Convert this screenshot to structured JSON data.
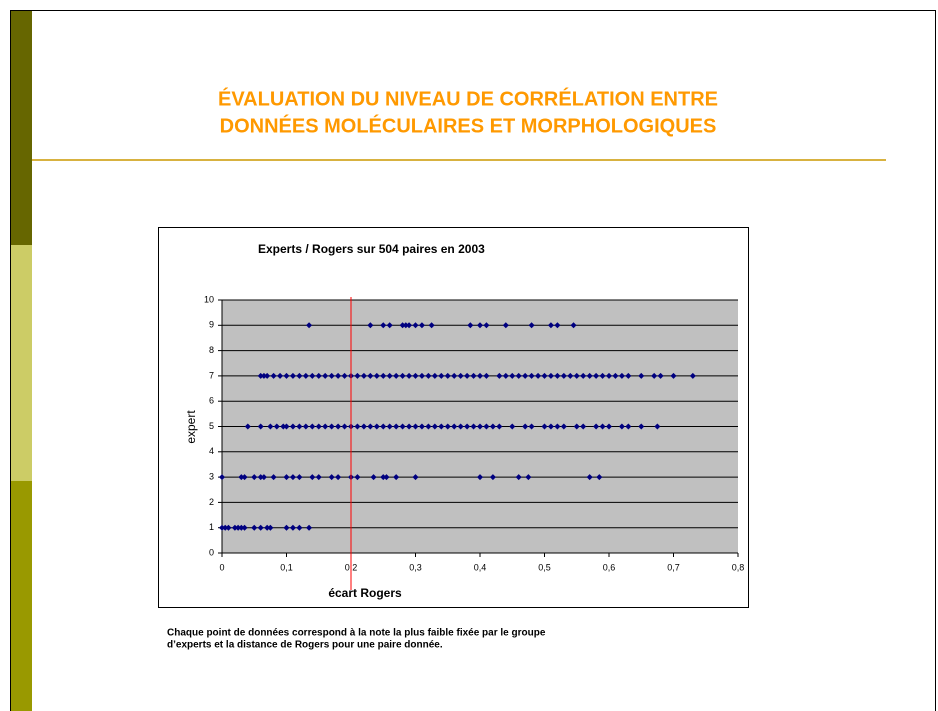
{
  "slide_title": [
    "ÉVALUATION DU NIVEAU DE CORRÉLATION ENTRE",
    "DONNÉES MOLÉCULAIRES ET MORPHOLOGIQUES"
  ],
  "caption": [
    "Chaque point de données correspond à la note la plus faible fixée par le groupe",
    "d’experts et la distance de Rogers pour une paire donnée."
  ],
  "chart_data": {
    "type": "scatter",
    "title": "Experts / Rogers sur 504 paires en 2003",
    "x_label": "écart Rogers",
    "y_label": "expert",
    "color": "#000080",
    "grid": true,
    "reference_line": {
      "x": 0.2,
      "color": "#ff0000"
    },
    "xlim": [
      0,
      0.8
    ],
    "ylim": [
      0,
      10
    ],
    "xticks": [
      0,
      {
        "value": 0.1,
        "label": "0,1"
      },
      {
        "value": 0.2,
        "label": "0,2"
      },
      {
        "value": 0.3,
        "label": "0,3"
      },
      {
        "value": 0.4,
        "label": "0,4"
      },
      {
        "value": 0.5,
        "label": "0,5"
      },
      {
        "value": 0.6,
        "label": "0,6"
      },
      {
        "value": 0.7,
        "label": "0,7"
      },
      {
        "value": 0.8,
        "label": "0,8"
      }
    ],
    "yticks": [
      0,
      1,
      2,
      3,
      4,
      5,
      6,
      7,
      8,
      9,
      10
    ],
    "x": [
      0,
      0.005,
      0.01,
      0.02,
      0.025,
      0.03,
      0.035,
      0.05,
      0.06,
      0.07,
      0.075,
      0.1,
      0.11,
      0.12,
      0.135,
      0,
      0.03,
      0.035,
      0.05,
      0.06,
      0.065,
      0.08,
      0.1,
      0.11,
      0.12,
      0.14,
      0.15,
      0.17,
      0.18,
      0.2,
      0.21,
      0.235,
      0.25,
      0.255,
      0.27,
      0.3,
      0.4,
      0.42,
      0.46,
      0.475,
      0.57,
      0.585,
      0.04,
      0.06,
      0.075,
      0.085,
      0.095,
      0.1,
      0.11,
      0.12,
      0.13,
      0.14,
      0.15,
      0.16,
      0.17,
      0.18,
      0.19,
      0.2,
      0.21,
      0.22,
      0.23,
      0.24,
      0.25,
      0.26,
      0.27,
      0.28,
      0.29,
      0.3,
      0.31,
      0.32,
      0.33,
      0.34,
      0.35,
      0.36,
      0.37,
      0.38,
      0.39,
      0.4,
      0.41,
      0.42,
      0.43,
      0.45,
      0.47,
      0.48,
      0.5,
      0.51,
      0.52,
      0.53,
      0.55,
      0.56,
      0.58,
      0.59,
      0.6,
      0.62,
      0.63,
      0.65,
      0.675,
      0.06,
      0.065,
      0.07,
      0.08,
      0.09,
      0.1,
      0.11,
      0.12,
      0.13,
      0.14,
      0.15,
      0.16,
      0.17,
      0.18,
      0.19,
      0.2,
      0.21,
      0.22,
      0.23,
      0.24,
      0.25,
      0.26,
      0.27,
      0.28,
      0.29,
      0.3,
      0.31,
      0.32,
      0.33,
      0.34,
      0.35,
      0.36,
      0.37,
      0.38,
      0.39,
      0.4,
      0.41,
      0.43,
      0.44,
      0.45,
      0.46,
      0.47,
      0.48,
      0.49,
      0.5,
      0.51,
      0.52,
      0.53,
      0.54,
      0.55,
      0.56,
      0.57,
      0.58,
      0.59,
      0.6,
      0.61,
      0.62,
      0.63,
      0.65,
      0.67,
      0.68,
      0.7,
      0.73,
      0.135,
      0.23,
      0.25,
      0.26,
      0.28,
      0.285,
      0.29,
      0.3,
      0.31,
      0.325,
      0.385,
      0.4,
      0.41,
      0.44,
      0.48,
      0.51,
      0.52,
      0.545
    ],
    "values": [
      1,
      1,
      1,
      1,
      1,
      1,
      1,
      1,
      1,
      1,
      1,
      1,
      1,
      1,
      1,
      3,
      3,
      3,
      3,
      3,
      3,
      3,
      3,
      3,
      3,
      3,
      3,
      3,
      3,
      3,
      3,
      3,
      3,
      3,
      3,
      3,
      3,
      3,
      3,
      3,
      3,
      3,
      5,
      5,
      5,
      5,
      5,
      5,
      5,
      5,
      5,
      5,
      5,
      5,
      5,
      5,
      5,
      5,
      5,
      5,
      5,
      5,
      5,
      5,
      5,
      5,
      5,
      5,
      5,
      5,
      5,
      5,
      5,
      5,
      5,
      5,
      5,
      5,
      5,
      5,
      5,
      5,
      5,
      5,
      5,
      5,
      5,
      5,
      5,
      5,
      5,
      5,
      5,
      5,
      5,
      5,
      5,
      7,
      7,
      7,
      7,
      7,
      7,
      7,
      7,
      7,
      7,
      7,
      7,
      7,
      7,
      7,
      7,
      7,
      7,
      7,
      7,
      7,
      7,
      7,
      7,
      7,
      7,
      7,
      7,
      7,
      7,
      7,
      7,
      7,
      7,
      7,
      7,
      7,
      7,
      7,
      7,
      7,
      7,
      7,
      7,
      7,
      7,
      7,
      7,
      7,
      7,
      7,
      7,
      7,
      7,
      7,
      7,
      7,
      7,
      7,
      7,
      7,
      7,
      7,
      9,
      9,
      9,
      9,
      9,
      9,
      9,
      9,
      9,
      9,
      9,
      9,
      9,
      9,
      9,
      9,
      9,
      9
    ]
  }
}
